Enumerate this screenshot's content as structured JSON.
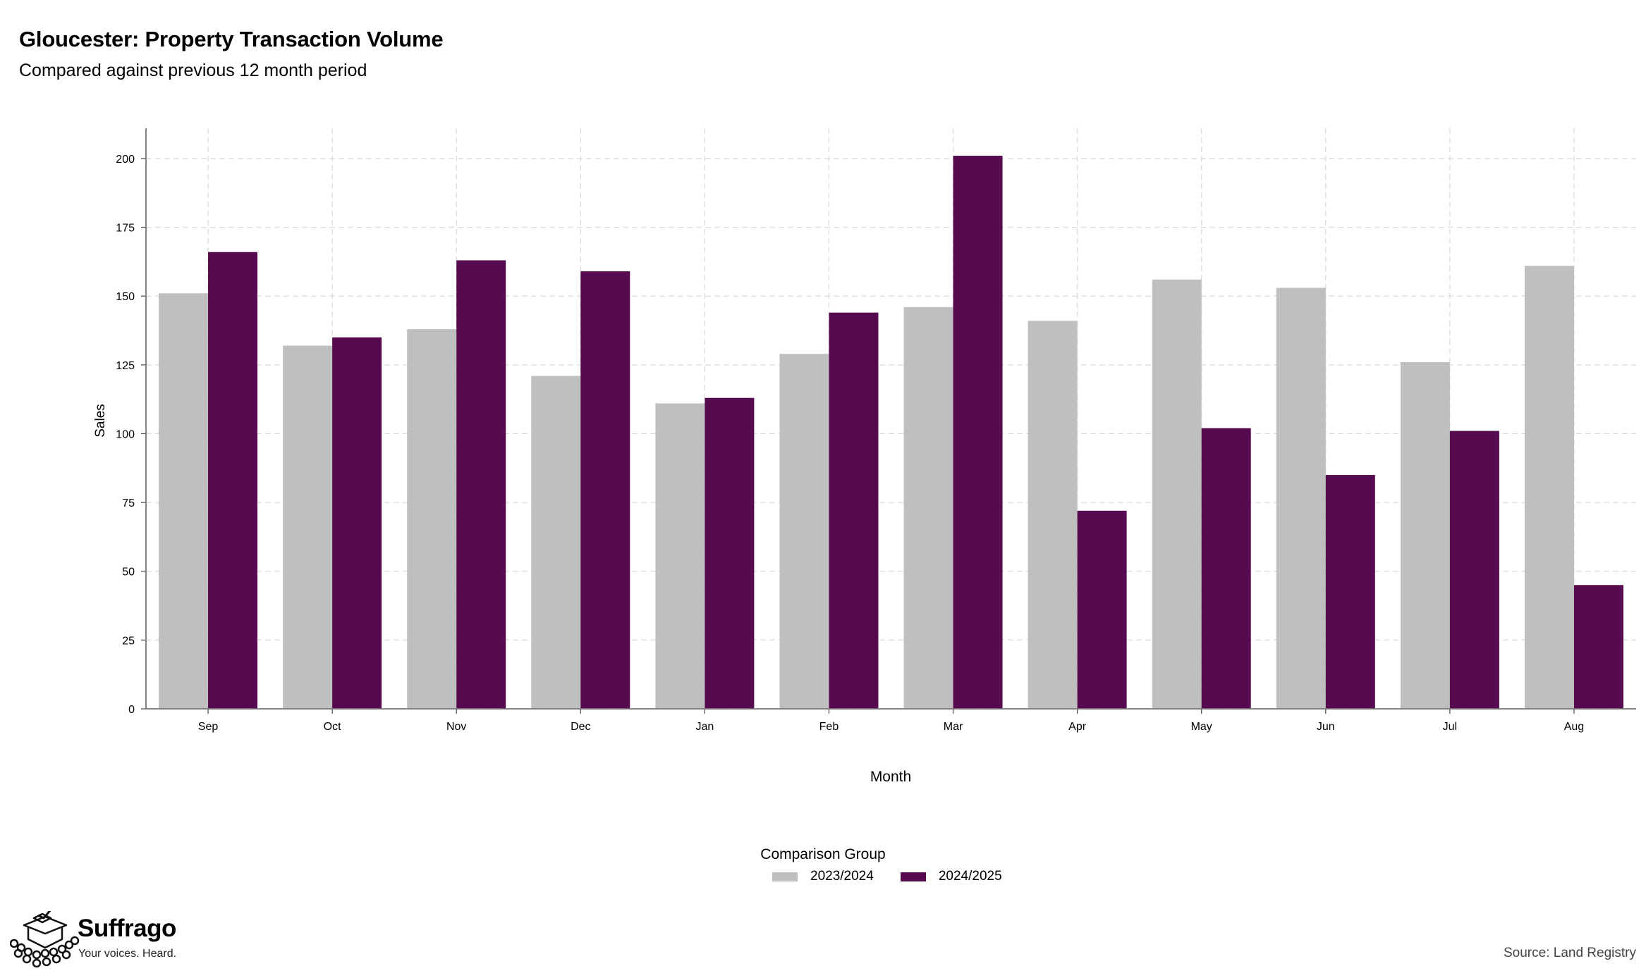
{
  "header": {
    "title": "Gloucester: Property Transaction Volume",
    "subtitle": "Compared against previous 12 month period"
  },
  "chart_data": {
    "type": "bar",
    "title": "Gloucester: Property Transaction Volume",
    "subtitle": "Compared against previous 12 month period",
    "xlabel": "Month",
    "ylabel": "Sales",
    "categories": [
      "Sep",
      "Oct",
      "Nov",
      "Dec",
      "Jan",
      "Feb",
      "Mar",
      "Apr",
      "May",
      "Jun",
      "Jul",
      "Aug"
    ],
    "series": [
      {
        "name": "2023/2024",
        "color": "#bfbfbf",
        "values": [
          151,
          132,
          138,
          121,
          111,
          129,
          146,
          141,
          156,
          153,
          126,
          161
        ]
      },
      {
        "name": "2024/2025",
        "color": "#560b50",
        "values": [
          166,
          135,
          163,
          159,
          113,
          144,
          201,
          72,
          102,
          85,
          101,
          45
        ]
      }
    ],
    "ylim": [
      0,
      211
    ],
    "yticks": [
      0,
      25,
      50,
      75,
      100,
      125,
      150,
      175,
      200
    ],
    "grid": true,
    "legend": {
      "title": "Comparison Group",
      "position": "bottom"
    }
  },
  "branding": {
    "logo_icon": "ballot-box-crowd-icon",
    "name": "Suffrago",
    "tagline": "Your voices. Heard."
  },
  "source": "Source: Land Registry"
}
